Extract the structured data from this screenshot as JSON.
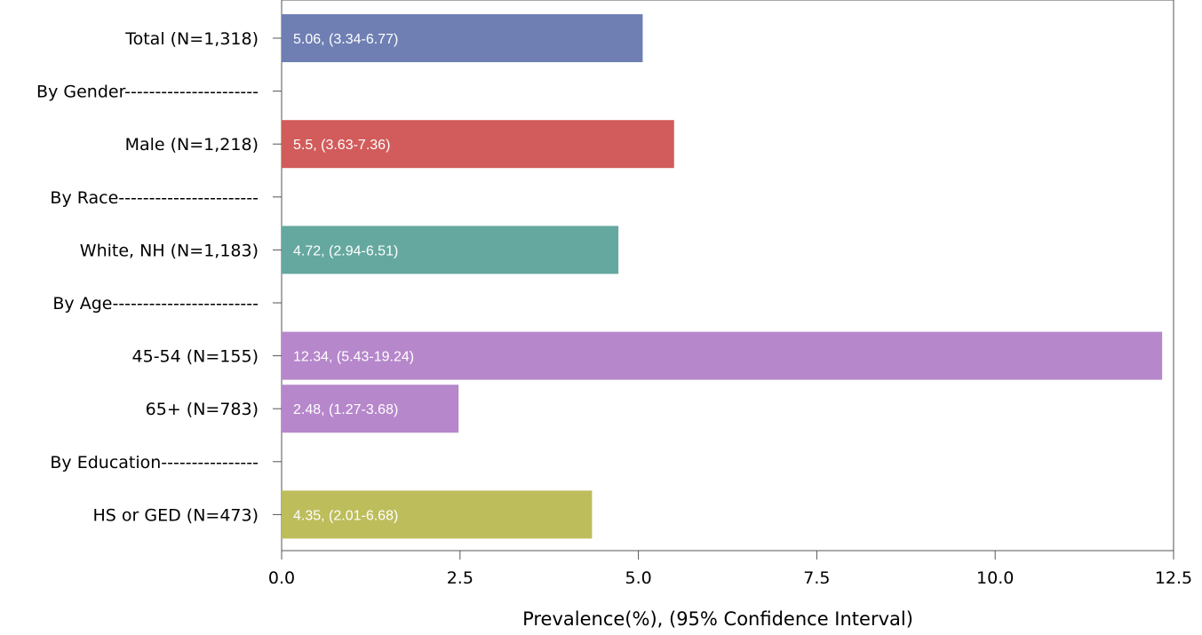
{
  "chart_data": {
    "type": "bar",
    "orientation": "horizontal",
    "xlabel": "Prevalence(%), (95% Confidence Interval)",
    "ylabel": "",
    "xlim": [
      0,
      12.5
    ],
    "xticks": [
      "0.0",
      "2.5",
      "5.0",
      "7.5",
      "10.0",
      "12.5"
    ],
    "categories": [
      "Total (N=1,318)",
      "By Gender----------------------",
      "Male (N=1,218)",
      "By Race-----------------------",
      "White, NH (N=1,183)",
      "By Age------------------------",
      "45-54 (N=155)",
      "65+ (N=783)",
      "By Education----------------",
      "HS or GED (N=473)"
    ],
    "values": [
      5.06,
      null,
      5.5,
      null,
      4.72,
      null,
      12.34,
      2.48,
      null,
      4.35
    ],
    "data_labels": [
      "5.06, (3.34-6.77)",
      "",
      "5.5, (3.63-7.36)",
      "",
      "4.72, (2.94-6.51)",
      "",
      "12.34, (5.43-19.24)",
      "2.48, (1.27-3.68)",
      "",
      "4.35, (2.01-6.68)"
    ],
    "colors": [
      "#6f7fb4",
      null,
      "#d15c5b",
      null,
      "#65a89f",
      null,
      "#b687cb",
      "#b687cb",
      null,
      "#bdbd5c"
    ],
    "grid": false,
    "legend": "none"
  }
}
